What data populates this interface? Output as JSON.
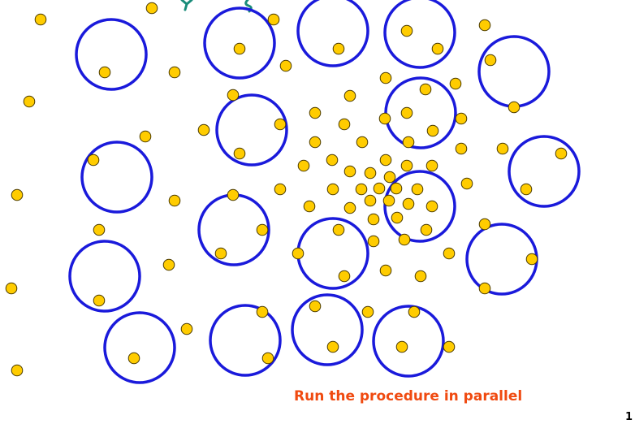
{
  "caption": "Run the procedure in parallel",
  "page_number": "1",
  "colors": {
    "circle_stroke": "#1a1adb",
    "point_fill": "#ffcc00",
    "point_stroke": "#4a3a00",
    "caption": "#f04a10",
    "title_fragment": "#1a8c7a"
  }
}
